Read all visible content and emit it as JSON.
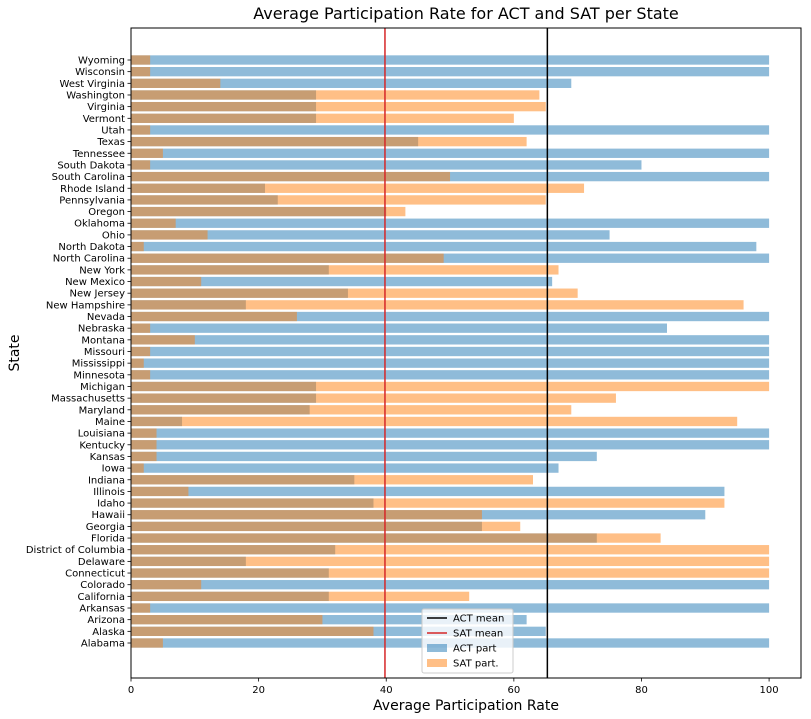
{
  "chart_data": {
    "type": "bar",
    "orientation": "horizontal",
    "title": "Average Participation Rate for ACT and SAT per State",
    "xlabel": "Average Participation Rate",
    "ylabel": "State",
    "xlim": [
      0,
      105
    ],
    "xticks": [
      0,
      20,
      40,
      60,
      80,
      100
    ],
    "grid": false,
    "legend_position": "bottom-center",
    "categories": [
      "Alabama",
      "Alaska",
      "Arizona",
      "Arkansas",
      "California",
      "Colorado",
      "Connecticut",
      "Delaware",
      "District of Columbia",
      "Florida",
      "Georgia",
      "Hawaii",
      "Idaho",
      "Illinois",
      "Indiana",
      "Iowa",
      "Kansas",
      "Kentucky",
      "Louisiana",
      "Maine",
      "Maryland",
      "Massachusetts",
      "Michigan",
      "Minnesota",
      "Mississippi",
      "Missouri",
      "Montana",
      "Nebraska",
      "Nevada",
      "New Hampshire",
      "New Jersey",
      "New Mexico",
      "New York",
      "North Carolina",
      "North Dakota",
      "Ohio",
      "Oklahoma",
      "Oregon",
      "Pennsylvania",
      "Rhode Island",
      "South Carolina",
      "South Dakota",
      "Tennessee",
      "Texas",
      "Utah",
      "Vermont",
      "Virginia",
      "Washington",
      "West Virginia",
      "Wisconsin",
      "Wyoming"
    ],
    "series": [
      {
        "name": "ACT part",
        "color": "#1f77b4",
        "alpha": 0.5,
        "values": [
          100,
          65,
          62,
          100,
          31,
          100,
          31,
          18,
          32,
          73,
          55,
          90,
          38,
          93,
          35,
          67,
          73,
          100,
          100,
          8,
          28,
          29,
          29,
          100,
          100,
          100,
          100,
          84,
          100,
          18,
          34,
          66,
          31,
          100,
          98,
          75,
          100,
          40,
          23,
          21,
          100,
          80,
          100,
          45,
          100,
          29,
          29,
          29,
          69,
          100,
          100
        ]
      },
      {
        "name": "SAT part.",
        "color": "#ff7f0e",
        "alpha": 0.5,
        "values": [
          5,
          38,
          30,
          3,
          53,
          11,
          100,
          100,
          100,
          83,
          61,
          55,
          93,
          9,
          63,
          2,
          4,
          4,
          4,
          95,
          69,
          76,
          100,
          3,
          2,
          3,
          10,
          3,
          26,
          96,
          70,
          11,
          67,
          49,
          2,
          12,
          7,
          43,
          65,
          71,
          50,
          3,
          5,
          62,
          3,
          60,
          65,
          64,
          14,
          3,
          3
        ]
      }
    ],
    "reference_lines": [
      {
        "name": "ACT mean",
        "value": 65.25,
        "color": "#000000"
      },
      {
        "name": "SAT mean",
        "value": 39.8,
        "color": "#d62728"
      }
    ]
  }
}
